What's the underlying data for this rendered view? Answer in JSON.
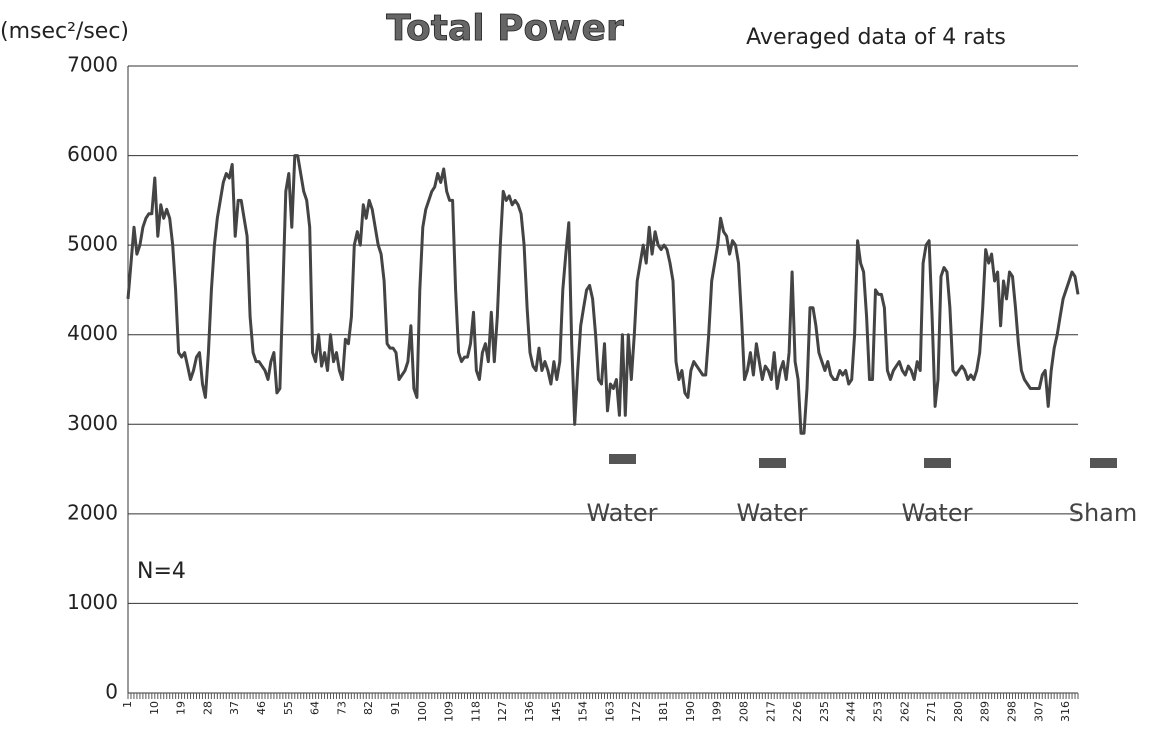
{
  "chart_data": {
    "type": "line",
    "title": "Total Power",
    "subtitle": "Averaged data of 4 rats",
    "y_label": "(msec²/sec)",
    "annotations": [
      "Water",
      "Water",
      "Water",
      "Sham",
      "N=4"
    ],
    "ylim": [
      0,
      7000
    ],
    "yticks": [
      0,
      1000,
      2000,
      3000,
      4000,
      5000,
      6000,
      7000
    ],
    "grid": true,
    "xlim": [
      1,
      320
    ],
    "xticks": [
      1,
      10,
      19,
      28,
      37,
      46,
      55,
      64,
      73,
      82,
      91,
      100,
      109,
      118,
      127,
      136,
      145,
      154,
      163,
      172,
      181,
      190,
      199,
      208,
      217,
      226,
      235,
      244,
      253,
      262,
      271,
      280,
      289,
      298,
      307,
      316
    ],
    "x": [
      1,
      2,
      3,
      4,
      5,
      6,
      7,
      8,
      9,
      10,
      11,
      12,
      13,
      14,
      15,
      16,
      17,
      18,
      19,
      20,
      21,
      22,
      23,
      24,
      25,
      26,
      27,
      28,
      29,
      30,
      31,
      32,
      33,
      34,
      35,
      36,
      37,
      38,
      39,
      40,
      41,
      42,
      43,
      44,
      45,
      46,
      47,
      48,
      49,
      50,
      51,
      52,
      53,
      54,
      55,
      56,
      57,
      58,
      59,
      60,
      61,
      62,
      63,
      64,
      65,
      66,
      67,
      68,
      69,
      70,
      71,
      72,
      73,
      74,
      75,
      76,
      77,
      78,
      79,
      80,
      81,
      82,
      83,
      84,
      85,
      86,
      87,
      88,
      89,
      90,
      91,
      92,
      93,
      94,
      95,
      96,
      97,
      98,
      99,
      100,
      101,
      102,
      103,
      104,
      105,
      106,
      107,
      108,
      109,
      110,
      111,
      112,
      113,
      114,
      115,
      116,
      117,
      118,
      119,
      120,
      121,
      122,
      123,
      124,
      125,
      126,
      127,
      128,
      129,
      130,
      131,
      132,
      133,
      134,
      135,
      136,
      137,
      138,
      139,
      140,
      141,
      142,
      143,
      144,
      145,
      146,
      147,
      148,
      149,
      150,
      151,
      152,
      153,
      154,
      155,
      156,
      157,
      158,
      159,
      160,
      161,
      162,
      163,
      164,
      165,
      166,
      167,
      168,
      169,
      170,
      171,
      172,
      173,
      174,
      175,
      176,
      177,
      178,
      179,
      180,
      181,
      182,
      183,
      184,
      185,
      186,
      187,
      188,
      189,
      190,
      191,
      192,
      193,
      194,
      195,
      196,
      197,
      198,
      199,
      200,
      201,
      202,
      203,
      204,
      205,
      206,
      207,
      208,
      209,
      210,
      211,
      212,
      213,
      214,
      215,
      216,
      217,
      218,
      219,
      220,
      221,
      222,
      223,
      224,
      225,
      226,
      227,
      228,
      229,
      230,
      231,
      232,
      233,
      234,
      235,
      236,
      237,
      238,
      239,
      240,
      241,
      242,
      243,
      244,
      245,
      246,
      247,
      248,
      249,
      250,
      251,
      252,
      253,
      254,
      255,
      256,
      257,
      258,
      259,
      260,
      261,
      262,
      263,
      264,
      265,
      266,
      267,
      268,
      269,
      270,
      271,
      272,
      273,
      274,
      275,
      276,
      277,
      278,
      279,
      280,
      281,
      282,
      283,
      284,
      285,
      286,
      287,
      288,
      289,
      290,
      291,
      292,
      293,
      294,
      295,
      296,
      297,
      298,
      299,
      300,
      301,
      302,
      303,
      304,
      305,
      306,
      307,
      308,
      309,
      310,
      311,
      312,
      313,
      314,
      315,
      316,
      317,
      318,
      319,
      320
    ],
    "series": [
      {
        "name": "Total Power",
        "color": "#444444",
        "values": [
          4400,
          4800,
          5200,
          4900,
          5000,
          5200,
          5300,
          5350,
          5350,
          5750,
          5100,
          5450,
          5300,
          5400,
          5300,
          5000,
          4500,
          3800,
          3750,
          3800,
          3650,
          3500,
          3600,
          3750,
          3800,
          3450,
          3300,
          3800,
          4500,
          5000,
          5300,
          5500,
          5700,
          5800,
          5750,
          5900,
          5100,
          5500,
          5500,
          5300,
          5100,
          4200,
          3800,
          3700,
          3700,
          3650,
          3600,
          3500,
          3700,
          3800,
          3350,
          3400,
          4500,
          5600,
          5800,
          5200,
          6000,
          6000,
          5800,
          5600,
          5500,
          5200,
          3800,
          3700,
          4000,
          3650,
          3800,
          3600,
          4000,
          3700,
          3800,
          3600,
          3500,
          3950,
          3900,
          4200,
          5000,
          5150,
          5000,
          5450,
          5300,
          5500,
          5400,
          5200,
          5000,
          4900,
          4600,
          3900,
          3850,
          3850,
          3800,
          3500,
          3550,
          3600,
          3700,
          4100,
          3400,
          3300,
          4500,
          5200,
          5400,
          5500,
          5600,
          5650,
          5800,
          5700,
          5850,
          5600,
          5500,
          5500,
          4500,
          3800,
          3700,
          3750,
          3750,
          3900,
          4250,
          3600,
          3500,
          3800,
          3900,
          3700,
          4250,
          3700,
          4200,
          5000,
          5600,
          5500,
          5550,
          5450,
          5500,
          5450,
          5350,
          5000,
          4300,
          3800,
          3650,
          3600,
          3850,
          3600,
          3700,
          3600,
          3450,
          3700,
          3500,
          3700,
          4500,
          4900,
          5250,
          3900,
          3000,
          3600,
          4100,
          4300,
          4500,
          4550,
          4400,
          4000,
          3500,
          3450,
          3900,
          3150,
          3450,
          3400,
          3500,
          3100,
          4000,
          3100,
          4000,
          3500,
          4000,
          4600,
          4800,
          5000,
          4800,
          5200,
          4900,
          5150,
          5000,
          4950,
          5000,
          4950,
          4800,
          4600,
          3700,
          3500,
          3600,
          3350,
          3300,
          3600,
          3700,
          3650,
          3600,
          3550,
          3550,
          4000,
          4600,
          4800,
          5000,
          5300,
          5150,
          5100,
          4900,
          5050,
          5000,
          4800,
          4200,
          3500,
          3600,
          3800,
          3550,
          3900,
          3700,
          3500,
          3650,
          3600,
          3500,
          3800,
          3400,
          3600,
          3700,
          3500,
          3800,
          4700,
          3700,
          3500,
          2900,
          2900,
          3400,
          4300,
          4300,
          4100,
          3800,
          3700,
          3600,
          3700,
          3550,
          3500,
          3500,
          3600,
          3550,
          3600,
          3450,
          3500,
          4000,
          5050,
          4800,
          4700,
          4200,
          3500,
          3500,
          4500,
          4450,
          4450,
          4300,
          3600,
          3500,
          3600,
          3650,
          3700,
          3600,
          3550,
          3650,
          3600,
          3500,
          3700,
          3600,
          4800,
          5000,
          5050,
          4200,
          3200,
          3500,
          4650,
          4750,
          4700,
          4300,
          3600,
          3550,
          3600,
          3650,
          3600,
          3500,
          3550,
          3500,
          3600,
          3800,
          4300,
          4950,
          4800,
          4900,
          4600,
          4700,
          4100,
          4600,
          4400,
          4700,
          4650,
          4300,
          3900,
          3600,
          3500,
          3450,
          3400,
          3400,
          3400,
          3400,
          3550,
          3600,
          3200,
          3600,
          3850,
          4000,
          4200,
          4400,
          4500,
          4600,
          4700,
          4650,
          4450
        ]
      }
    ]
  }
}
